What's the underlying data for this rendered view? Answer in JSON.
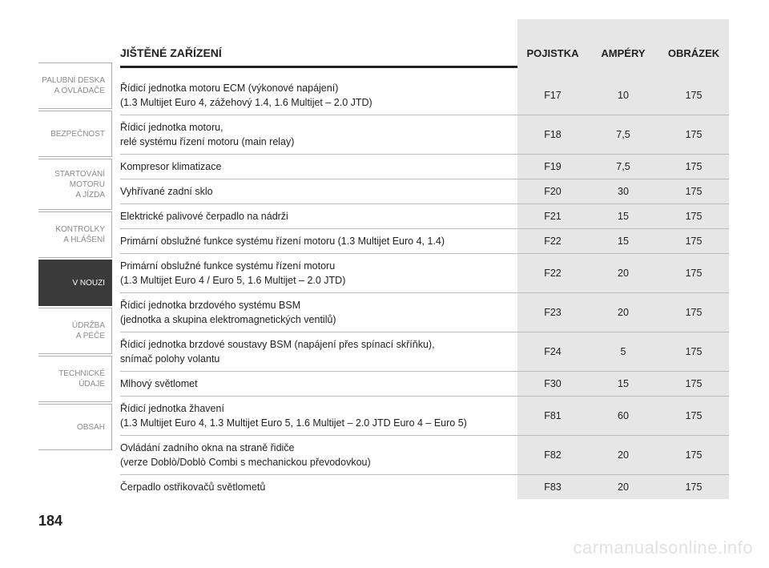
{
  "page_number": "184",
  "watermark": "carmanualsonline.info",
  "colors": {
    "text": "#222222",
    "tab_inactive_text": "#8a8a8a",
    "tab_active_bg": "#3a3a3a",
    "tab_active_text": "#ffffff",
    "col_shade": "#e6e6e6",
    "row_border": "#bcbcbc",
    "head_border": "#222222",
    "watermark": "#e2e2e2",
    "page_bg": "#ffffff"
  },
  "sidebar": {
    "tabs": [
      {
        "lines": [
          "PALUBNÍ DESKA",
          "A OVLÁDAČE"
        ],
        "active": false
      },
      {
        "lines": [
          "BEZPEČNOST"
        ],
        "active": false
      },
      {
        "lines": [
          "STARTOVÁNÍ",
          "MOTORU",
          "A JÍZDA"
        ],
        "active": false
      },
      {
        "lines": [
          "KONTROLKY",
          "A HLÁŠENÍ"
        ],
        "active": false
      },
      {
        "lines": [
          "V NOUZI"
        ],
        "active": true
      },
      {
        "lines": [
          "ÚDRŽBA",
          "A PÉČE"
        ],
        "active": false
      },
      {
        "lines": [
          "TECHNICKÉ",
          "ÚDAJE"
        ],
        "active": false
      },
      {
        "lines": [
          "OBSAH"
        ],
        "active": false
      }
    ]
  },
  "table": {
    "headers": {
      "desc": "JIŠTĚNÉ ZAŘÍZENÍ",
      "fuse": "POJISTKA",
      "amp": "AMPÉRY",
      "fig": "OBRÁZEK"
    },
    "rows": [
      {
        "desc": [
          "Řídicí jednotka motoru ECM (výkonové napájení)",
          "(1.3 Multijet Euro 4, zážehový 1.4, 1.6 Multijet – 2.0 JTD)"
        ],
        "fuse": "F17",
        "amp": "10",
        "fig": "175"
      },
      {
        "desc": [
          "Řídicí jednotka motoru,",
          "relé systému řízení motoru (main relay)"
        ],
        "fuse": "F18",
        "amp": "7,5",
        "fig": "175"
      },
      {
        "desc": [
          "Kompresor klimatizace"
        ],
        "fuse": "F19",
        "amp": "7,5",
        "fig": "175"
      },
      {
        "desc": [
          "Vyhřívané zadní sklo"
        ],
        "fuse": "F20",
        "amp": "30",
        "fig": "175"
      },
      {
        "desc": [
          "Elektrické palivové čerpadlo na nádrži"
        ],
        "fuse": "F21",
        "amp": "15",
        "fig": "175"
      },
      {
        "desc": [
          "Primární obslužné funkce systému řízení motoru (1.3 Multijet Euro 4, 1.4)"
        ],
        "fuse": "F22",
        "amp": "15",
        "fig": "175"
      },
      {
        "desc": [
          "Primární obslužné funkce systému řízení motoru",
          "(1.3 Multijet Euro 4 / Euro 5, 1.6 Multijet – 2.0 JTD)"
        ],
        "fuse": "F22",
        "amp": "20",
        "fig": "175"
      },
      {
        "desc": [
          "Řídicí jednotka brzdového systému BSM",
          "(jednotka a skupina elektromagnetických ventilů)"
        ],
        "fuse": "F23",
        "amp": "20",
        "fig": "175"
      },
      {
        "desc": [
          "Řídicí jednotka brzdové soustavy BSM (napájení přes spínací skříňku),",
          "snímač polohy volantu"
        ],
        "fuse": "F24",
        "amp": "5",
        "fig": "175"
      },
      {
        "desc": [
          "Mlhový světlomet"
        ],
        "fuse": "F30",
        "amp": "15",
        "fig": "175"
      },
      {
        "desc": [
          "Řídicí jednotka žhavení",
          "(1.3 Multijet Euro 4, 1.3 Multijet Euro 5, 1.6 Multijet – 2.0 JTD Euro 4 – Euro 5)"
        ],
        "fuse": "F81",
        "amp": "60",
        "fig": "175"
      },
      {
        "desc": [
          "Ovládání zadního okna na straně řidiče",
          "(verze Doblò/Doblò Combi s mechanickou převodovkou)"
        ],
        "fuse": "F82",
        "amp": "20",
        "fig": "175"
      },
      {
        "desc": [
          "Čerpadlo ostřikovačů světlometů"
        ],
        "fuse": "F83",
        "amp": "20",
        "fig": "175"
      }
    ]
  }
}
